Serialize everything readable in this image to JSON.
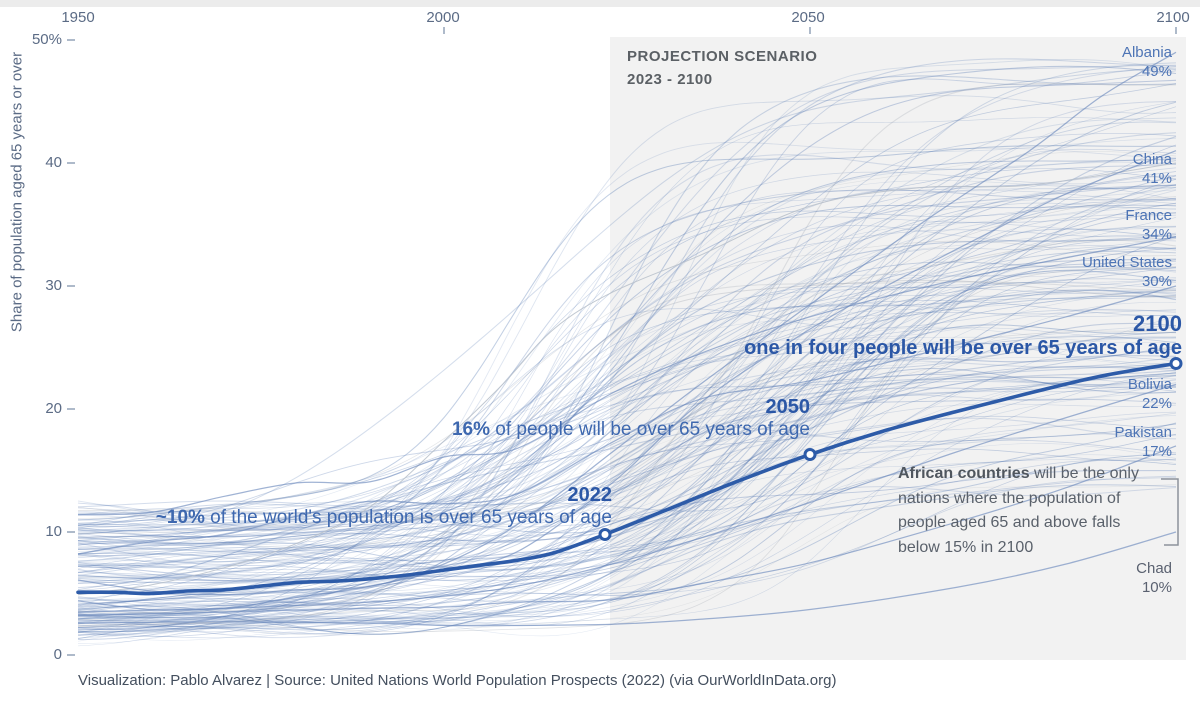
{
  "colors": {
    "accent_line": "#2d5ba8",
    "annotation_text": "#3e68af",
    "annotation_bold": "#2b57a6",
    "country_label": "#4d74b5",
    "axis_text": "#5b6b85",
    "note_text": "#5a616b",
    "projection_box": "#f2f2f2",
    "background_line": "#4a6fae"
  },
  "axis": {
    "y_title": "Share of population aged 65 years or over",
    "x_ticks": [
      "1950",
      "2000",
      "2050",
      "2100"
    ],
    "y_ticks": [
      "50%",
      "40",
      "30",
      "20",
      "10",
      "0"
    ]
  },
  "projection": {
    "title": "PROJECTION SCENARIO",
    "subtitle": "2023 - 2100"
  },
  "annotations": {
    "a2022": {
      "year": "2022",
      "lead": "~10%",
      "text": " of the world's population is over 65 years of age"
    },
    "a2050": {
      "year": "2050",
      "lead": "16%",
      "text": " of people will be over 65 years of age"
    },
    "a2100": {
      "year": "2100",
      "lead": "",
      "text": "one in four people will be over 65 years of age"
    }
  },
  "note": {
    "bold": "African countries",
    "rest": " will be the only nations where the population of people aged 65 and above falls below 15% in 2100"
  },
  "footer": "Visualization: Pablo Alvarez | Source: United Nations World Population Prospects (2022) (via OurWorldInData.org)",
  "chart_data": {
    "type": "line",
    "title": "Share of population aged 65 years or over, 1950-2100, one line per country with world average highlighted",
    "x_range": [
      1950,
      2100
    ],
    "y_range": [
      0,
      50
    ],
    "projection_start": 2023,
    "grid": false,
    "legend_position": "none",
    "world": {
      "name": "World",
      "points": [
        [
          1950,
          5.1
        ],
        [
          1955,
          5.1
        ],
        [
          1960,
          5.0
        ],
        [
          1965,
          5.2
        ],
        [
          1970,
          5.3
        ],
        [
          1975,
          5.6
        ],
        [
          1980,
          5.9
        ],
        [
          1985,
          6.0
        ],
        [
          1990,
          6.2
        ],
        [
          1995,
          6.5
        ],
        [
          2000,
          6.9
        ],
        [
          2005,
          7.3
        ],
        [
          2010,
          7.7
        ],
        [
          2015,
          8.3
        ],
        [
          2022,
          9.8
        ],
        [
          2030,
          11.7
        ],
        [
          2040,
          14.1
        ],
        [
          2050,
          16.3
        ],
        [
          2060,
          18.2
        ],
        [
          2070,
          19.8
        ],
        [
          2080,
          21.3
        ],
        [
          2090,
          22.7
        ],
        [
          2100,
          23.7
        ]
      ],
      "markers": [
        {
          "year": 2022,
          "value": 9.8
        },
        {
          "year": 2050,
          "value": 16.3
        },
        {
          "year": 2100,
          "value": 23.7
        }
      ]
    },
    "labeled_countries": [
      {
        "name": "Albania",
        "label": "49%",
        "value_2100": 49,
        "points": [
          [
            1950,
            6.1
          ],
          [
            1960,
            5.2
          ],
          [
            1970,
            4.9
          ],
          [
            1980,
            5.3
          ],
          [
            1990,
            5.6
          ],
          [
            2000,
            7.4
          ],
          [
            2010,
            10.6
          ],
          [
            2023,
            16.5
          ],
          [
            2035,
            22.0
          ],
          [
            2050,
            28.5
          ],
          [
            2065,
            35.0
          ],
          [
            2080,
            41.0
          ],
          [
            2090,
            45.5
          ],
          [
            2100,
            49.0
          ]
        ]
      },
      {
        "name": "China",
        "label": "41%",
        "value_2100": 41,
        "points": [
          [
            1950,
            4.4
          ],
          [
            1960,
            3.7
          ],
          [
            1970,
            3.8
          ],
          [
            1980,
            4.7
          ],
          [
            1990,
            5.6
          ],
          [
            2000,
            6.9
          ],
          [
            2010,
            8.4
          ],
          [
            2023,
            14.0
          ],
          [
            2035,
            20.5
          ],
          [
            2050,
            26.5
          ],
          [
            2062,
            30.5
          ],
          [
            2075,
            34.5
          ],
          [
            2085,
            37.5
          ],
          [
            2100,
            41.0
          ]
        ]
      },
      {
        "name": "France",
        "label": "34%",
        "value_2100": 34,
        "points": [
          [
            1950,
            11.4
          ],
          [
            1960,
            11.6
          ],
          [
            1970,
            12.9
          ],
          [
            1980,
            14.0
          ],
          [
            1990,
            14.1
          ],
          [
            2000,
            16.1
          ],
          [
            2010,
            16.8
          ],
          [
            2023,
            21.3
          ],
          [
            2035,
            24.5
          ],
          [
            2050,
            27.5
          ],
          [
            2070,
            30.5
          ],
          [
            2085,
            32.3
          ],
          [
            2100,
            34.0
          ]
        ]
      },
      {
        "name": "United States",
        "label": "30%",
        "value_2100": 30,
        "points": [
          [
            1950,
            8.2
          ],
          [
            1960,
            9.2
          ],
          [
            1970,
            9.8
          ],
          [
            1980,
            11.3
          ],
          [
            1990,
            12.5
          ],
          [
            2000,
            12.3
          ],
          [
            2010,
            13.1
          ],
          [
            2023,
            17.3
          ],
          [
            2035,
            20.8
          ],
          [
            2050,
            22.3
          ],
          [
            2070,
            25.2
          ],
          [
            2085,
            27.5
          ],
          [
            2100,
            30.0
          ]
        ]
      },
      {
        "name": "Bolivia",
        "label": "22%",
        "value_2100": 22,
        "points": [
          [
            1950,
            3.5
          ],
          [
            1970,
            3.8
          ],
          [
            1990,
            4.3
          ],
          [
            2000,
            4.8
          ],
          [
            2010,
            5.6
          ],
          [
            2023,
            7.4
          ],
          [
            2035,
            9.5
          ],
          [
            2050,
            12.4
          ],
          [
            2070,
            16.5
          ],
          [
            2085,
            19.3
          ],
          [
            2100,
            22.0
          ]
        ]
      },
      {
        "name": "Pakistan",
        "label": "17%",
        "value_2100": 17,
        "points": [
          [
            1950,
            3.2
          ],
          [
            1970,
            3.5
          ],
          [
            1990,
            3.8
          ],
          [
            2000,
            3.9
          ],
          [
            2010,
            4.3
          ],
          [
            2023,
            4.5
          ],
          [
            2035,
            5.8
          ],
          [
            2050,
            7.5
          ],
          [
            2070,
            10.8
          ],
          [
            2085,
            13.6
          ],
          [
            2100,
            17.0
          ]
        ]
      },
      {
        "name": "Chad",
        "label": "10%",
        "value_2100": 10,
        "points": [
          [
            1950,
            2.6
          ],
          [
            1970,
            2.7
          ],
          [
            1990,
            2.6
          ],
          [
            2000,
            2.4
          ],
          [
            2010,
            2.4
          ],
          [
            2023,
            2.5
          ],
          [
            2035,
            2.9
          ],
          [
            2050,
            3.7
          ],
          [
            2070,
            5.5
          ],
          [
            2085,
            7.4
          ],
          [
            2100,
            10.0
          ]
        ]
      }
    ],
    "background_highlight": {
      "points": [
        [
          1950,
          4.9
        ],
        [
          1960,
          5.7
        ],
        [
          1970,
          7.1
        ],
        [
          1980,
          9.1
        ],
        [
          1990,
          12.1
        ],
        [
          2000,
          17.4
        ],
        [
          2008,
          22.0
        ],
        [
          2015,
          26.5
        ],
        [
          2023,
          29.5
        ],
        [
          2035,
          32.5
        ],
        [
          2050,
          36.5
        ],
        [
          2065,
          38.0
        ],
        [
          2080,
          38.2
        ],
        [
          2100,
          40.0
        ]
      ]
    },
    "background_lines": {
      "count": 185,
      "description": "unlabeled per-country trajectories, thin light blue"
    }
  }
}
